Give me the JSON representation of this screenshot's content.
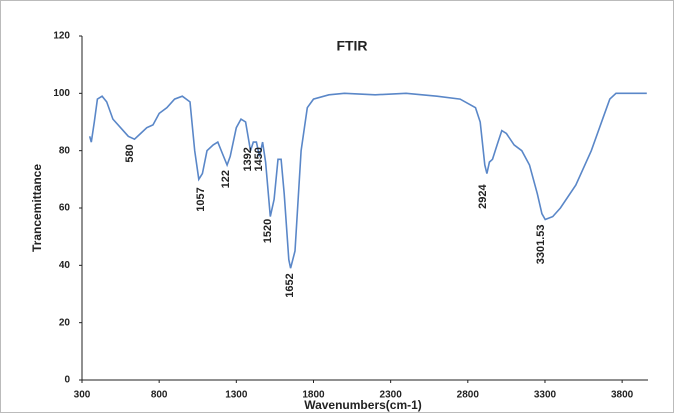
{
  "chart_data": {
    "type": "line",
    "title": "FTIR",
    "x_label": "Wavenumbers(cm-1)",
    "y_label": "Trancemittance",
    "xlim": [
      300,
      4000
    ],
    "ylim": [
      0,
      120
    ],
    "xticks": [
      300,
      800,
      1300,
      1800,
      2300,
      2800,
      3300,
      3800
    ],
    "yticks": [
      0,
      20,
      40,
      60,
      80,
      100,
      120
    ],
    "grid": false,
    "series": [
      {
        "name": "FTIR",
        "color": "#5a87c8",
        "x": [
          350,
          360,
          380,
          400,
          430,
          460,
          500,
          550,
          600,
          640,
          680,
          720,
          760,
          800,
          850,
          900,
          950,
          1000,
          1030,
          1057,
          1080,
          1110,
          1150,
          1180,
          1210,
          1240,
          1260,
          1300,
          1330,
          1360,
          1392,
          1410,
          1430,
          1450,
          1470,
          1490,
          1520,
          1545,
          1570,
          1590,
          1610,
          1640,
          1652,
          1680,
          1720,
          1760,
          1800,
          1900,
          2000,
          2200,
          2400,
          2600,
          2750,
          2850,
          2880,
          2910,
          2924,
          2940,
          2960,
          2990,
          3020,
          3050,
          3100,
          3150,
          3200,
          3250,
          3280,
          3301.53,
          3350,
          3400,
          3500,
          3600,
          3680,
          3720,
          3760,
          3800,
          3900,
          3960
        ],
        "values": [
          85,
          83,
          90,
          98,
          99,
          97,
          91,
          88,
          85,
          84,
          86,
          88,
          89,
          93,
          95,
          98,
          99,
          97,
          80,
          70,
          72,
          80,
          82,
          83,
          79,
          75,
          78,
          88,
          91,
          90,
          80,
          83,
          83,
          78,
          83,
          76,
          57,
          63,
          77,
          77,
          65,
          42,
          39,
          45,
          80,
          95,
          98,
          99.5,
          100,
          99.5,
          100,
          99,
          98,
          95,
          90,
          75,
          72,
          76,
          77,
          82,
          87,
          86,
          82,
          80,
          75,
          65,
          58,
          56,
          57,
          60,
          68,
          80,
          92,
          98,
          100,
          100,
          100,
          100
        ]
      }
    ],
    "annotations": [
      {
        "text": "580",
        "x": 611,
        "y": 84
      },
      {
        "text": "1057",
        "x": 1071,
        "y": 69
      },
      {
        "text": "122",
        "x": 1233,
        "y": 75
      },
      {
        "text": "1392",
        "x": 1376,
        "y": 83
      },
      {
        "text": "1450",
        "x": 1447,
        "y": 83
      },
      {
        "text": "1520",
        "x": 1505,
        "y": 58
      },
      {
        "text": "1652",
        "x": 1648,
        "y": 39
      },
      {
        "text": "2924",
        "x": 2899,
        "y": 70
      },
      {
        "text": "3301.53",
        "x": 3275,
        "y": 56
      }
    ]
  }
}
